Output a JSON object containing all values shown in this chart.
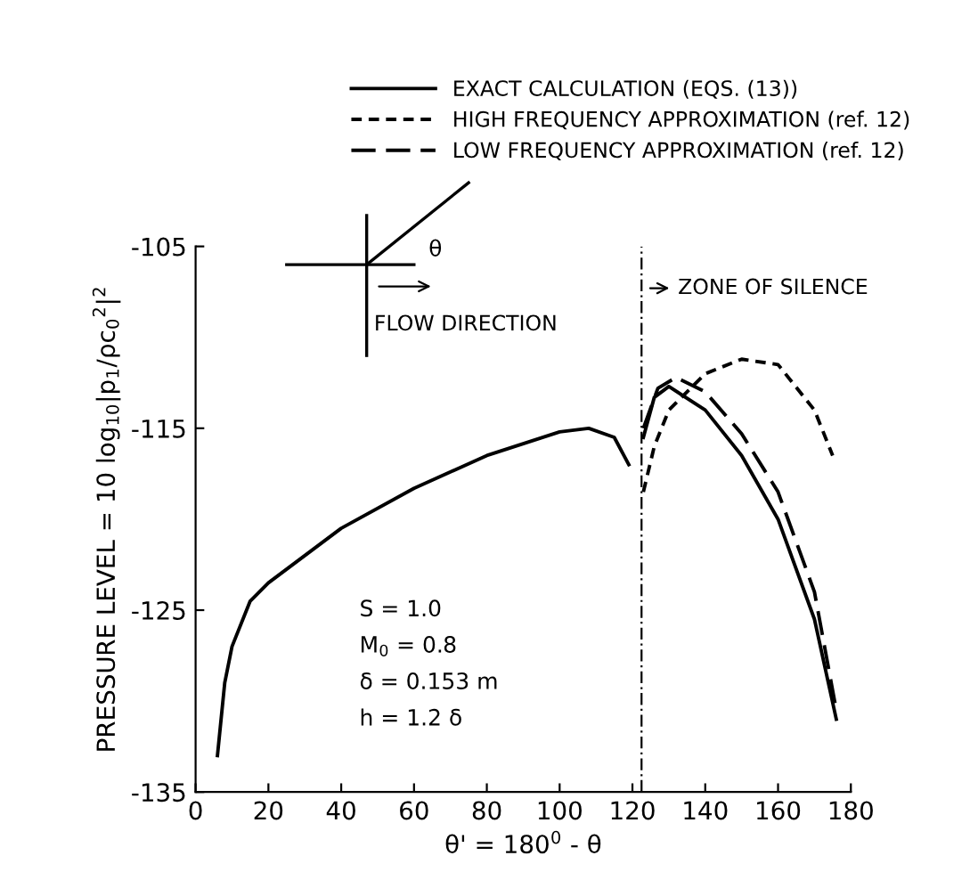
{
  "chart_data": {
    "type": "line",
    "xlabel": "θ' = 180$^{0}$ - θ",
    "ylabel": "PRESSURE LEVEL = 10 log$_{10}$|p$_{1}$/ρc$_{0}$$^{2}$|$^{2}$",
    "xlim": [
      0,
      180
    ],
    "xticks": [
      0,
      20,
      40,
      60,
      80,
      100,
      120,
      140,
      160,
      180
    ],
    "ylim": [
      -135,
      -105
    ],
    "yticks": [
      -135,
      -125,
      -115,
      -105
    ],
    "grid": false,
    "legend": "top right",
    "marker": "none",
    "series": [
      {
        "name": "EXACT CALCULATION (EQS. (13))",
        "color": "#000000",
        "line_style": "solid",
        "x": [
          6,
          8,
          10,
          15,
          20,
          40,
          60,
          80,
          100,
          108,
          115,
          119
        ],
        "values": [
          -133,
          -129,
          -127,
          -124.5,
          -123.5,
          -120.5,
          -118.3,
          -116.5,
          -115.2,
          -115,
          -115.5,
          -117
        ]
      },
      {
        "color": "#000000",
        "line_style": "solid",
        "x": [
          123,
          126,
          130,
          140,
          150,
          160,
          170,
          176
        ],
        "values": [
          -115.5,
          -113.3,
          -112.7,
          -114,
          -116.5,
          -120,
          -125.5,
          -131
        ]
      },
      {
        "name": "HIGH FREQUENCY APPROXIMATION (ref. 12)",
        "color": "#000000",
        "line_style": "dashed",
        "x": [
          123,
          126,
          130,
          140,
          150,
          160,
          170,
          175
        ],
        "values": [
          -118.5,
          -116,
          -114,
          -112,
          -111.2,
          -111.5,
          -114,
          -116.5
        ]
      },
      {
        "name": "LOW FREQUENCY APPROXIMATION (ref. 12)",
        "color": "#000000",
        "line_style": "dashed",
        "x": [
          123,
          127,
          132,
          140,
          150,
          160,
          170,
          176
        ],
        "values": [
          -115,
          -112.8,
          -112.2,
          -113,
          -115.3,
          -118.5,
          -124,
          -130.5
        ]
      }
    ],
    "ref_lines": [
      {
        "axis": "x",
        "value": 122.5,
        "label": "ZONE OF SILENCE",
        "color": "#000000",
        "line_style": "dashed"
      }
    ],
    "annotations": [
      "θ",
      "FLOW DIRECTION",
      "S = 1.0",
      "M$_{0}$ = 0.8",
      "δ = 0.153 m",
      "h = 1.2 δ"
    ]
  }
}
